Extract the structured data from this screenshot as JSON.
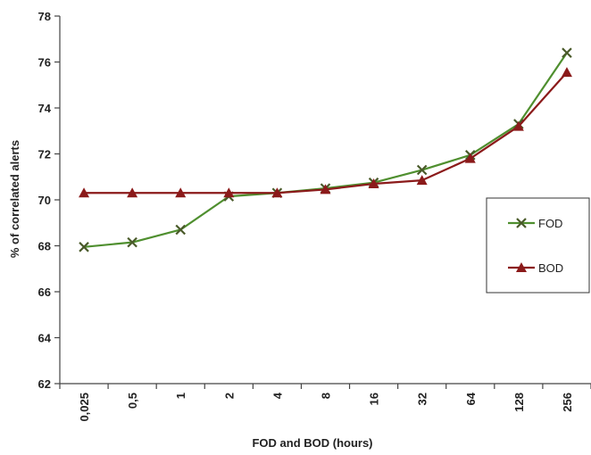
{
  "chart_data": {
    "type": "line",
    "title": "",
    "xlabel": "FOD and BOD (hours)",
    "ylabel": "% of correlated alerts",
    "categories": [
      "0,025",
      "0,5",
      "1",
      "2",
      "4",
      "8",
      "16",
      "32",
      "64",
      "128",
      "256"
    ],
    "ylim": [
      62,
      78
    ],
    "yticks": [
      62,
      64,
      66,
      68,
      70,
      72,
      74,
      76,
      78
    ],
    "grid": false,
    "legend_position": "right",
    "series": [
      {
        "name": "FOD",
        "color": "#4f8f2f",
        "marker": "x",
        "values": [
          67.95,
          68.15,
          68.7,
          70.15,
          70.3,
          70.5,
          70.75,
          71.3,
          71.95,
          73.3,
          76.4
        ]
      },
      {
        "name": "BOD",
        "color": "#8b1a1a",
        "marker": "triangle",
        "values": [
          70.3,
          70.3,
          70.3,
          70.3,
          70.3,
          70.45,
          70.7,
          70.85,
          71.8,
          73.2,
          75.55
        ]
      }
    ]
  }
}
